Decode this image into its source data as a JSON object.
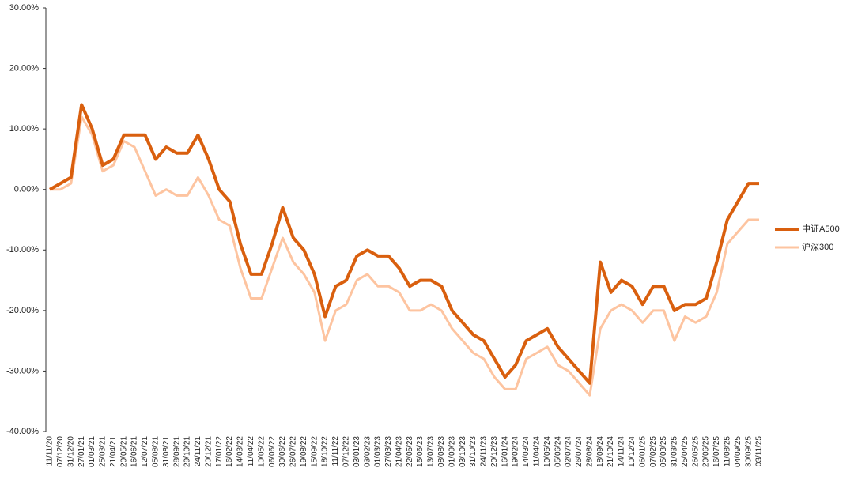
{
  "chart_data": {
    "type": "line",
    "categories": [
      "11/11/20",
      "07/12/20",
      "31/12/20",
      "27/01/21",
      "01/03/21",
      "25/03/21",
      "21/04/21",
      "20/05/21",
      "16/06/21",
      "12/07/21",
      "05/08/21",
      "31/08/21",
      "28/09/21",
      "29/10/21",
      "24/11/21",
      "20/12/21",
      "17/01/22",
      "16/02/22",
      "14/03/22",
      "11/04/22",
      "10/05/22",
      "06/06/22",
      "30/06/22",
      "26/07/22",
      "19/08/22",
      "15/09/22",
      "18/10/22",
      "11/11/22",
      "07/12/22",
      "03/01/23",
      "03/02/23",
      "01/03/23",
      "27/03/23",
      "21/04/23",
      "22/05/23",
      "15/06/23",
      "13/07/23",
      "08/08/23",
      "01/09/23",
      "03/10/23",
      "31/10/23",
      "24/11/23",
      "20/12/23",
      "16/01/24",
      "19/02/24",
      "14/03/24",
      "11/04/24",
      "10/05/24",
      "05/06/24",
      "02/07/24",
      "26/07/24",
      "28/08/24",
      "18/09/24",
      "21/10/24",
      "14/11/24",
      "10/12/24",
      "06/01/25",
      "07/02/25",
      "05/03/25",
      "31/03/25",
      "25/04/25",
      "26/05/25",
      "20/06/25",
      "16/07/25",
      "11/08/25",
      "04/09/25",
      "30/09/25",
      "03/11/25"
    ],
    "series": [
      {
        "name": "中证A500",
        "color": "#d95f0e",
        "values": [
          0,
          1,
          2,
          14,
          10,
          4,
          5,
          9,
          9,
          9,
          5,
          7,
          6,
          6,
          9,
          5,
          0,
          -2,
          -9,
          -14,
          -14,
          -9,
          -3,
          -8,
          -10,
          -14,
          -21,
          -16,
          -15,
          -11,
          -10,
          -11,
          -11,
          -13,
          -16,
          -15,
          -15,
          -16,
          -20,
          -22,
          -24,
          -25,
          -28,
          -31,
          -29,
          -25,
          -24,
          -23,
          -26,
          -28,
          -30,
          -32,
          -12,
          -17,
          -15,
          -16,
          -19,
          -16,
          -16,
          -20,
          -19,
          -19,
          -18,
          -12,
          -5,
          -2,
          1,
          1
        ]
      },
      {
        "name": "沪深300",
        "color": "#fdc4a0",
        "values": [
          0,
          0,
          1,
          12,
          9,
          3,
          4,
          8,
          7,
          3,
          -1,
          0,
          -1,
          -1,
          2,
          -1,
          -5,
          -6,
          -13,
          -18,
          -18,
          -13,
          -8,
          -12,
          -14,
          -17,
          -25,
          -20,
          -19,
          -15,
          -14,
          -16,
          -16,
          -17,
          -20,
          -20,
          -19,
          -20,
          -23,
          -25,
          -27,
          -28,
          -31,
          -33,
          -33,
          -28,
          -27,
          -26,
          -29,
          -30,
          -32,
          -34,
          -23,
          -20,
          -19,
          -20,
          -22,
          -20,
          -20,
          -25,
          -21,
          -22,
          -21,
          -17,
          -9,
          -7,
          -5,
          -5
        ]
      }
    ],
    "ylim": [
      -40,
      30
    ],
    "yticks": [
      {
        "value": -40,
        "label": "-40.00%"
      },
      {
        "value": -30,
        "label": "-30.00%"
      },
      {
        "value": -20,
        "label": "-20.00%"
      },
      {
        "value": -10,
        "label": "-10.00%"
      },
      {
        "value": 0,
        "label": "0.00%"
      },
      {
        "value": 10,
        "label": "10.00%"
      },
      {
        "value": 20,
        "label": "20.00%"
      },
      {
        "value": 30,
        "label": "30.00%"
      }
    ],
    "legend": "right"
  }
}
